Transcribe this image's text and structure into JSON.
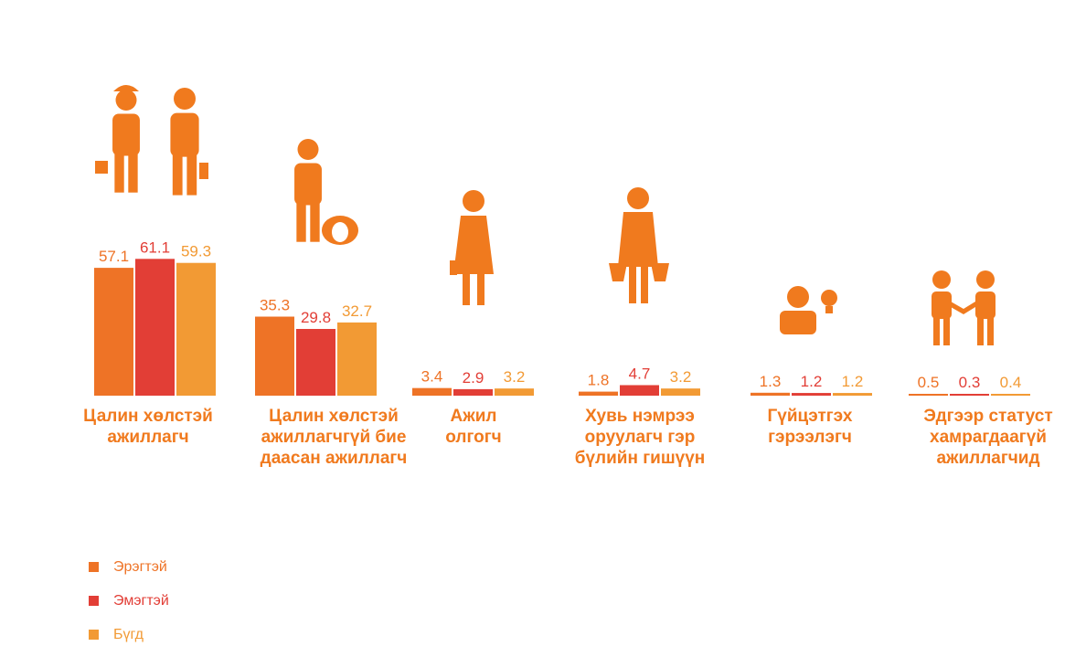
{
  "colors": {
    "men": "#EE7326",
    "women": "#E23E36",
    "total": "#F29A34",
    "label": "#F07A1E",
    "icon": "#F07A1E"
  },
  "chart_data": {
    "type": "bar",
    "categories": [
      [
        "Цалин хөлстэй",
        "ажиллагч"
      ],
      [
        "Цалин хөлстэй",
        "ажиллагчгүй бие",
        "даасан ажиллагч"
      ],
      [
        "Ажил",
        "олгогч"
      ],
      [
        "Хувь нэмрээ",
        "оруулагч гэр",
        "бүлийн гишүүн"
      ],
      [
        "Гүйцэтгэх",
        "гэрээлэгч"
      ],
      [
        "Эдгээр статуст",
        "хамрагдаагүй",
        "ажиллагчид"
      ]
    ],
    "series": [
      {
        "name": "Эрэгтэй",
        "values": [
          57.1,
          35.3,
          3.4,
          1.8,
          1.3,
          0.5
        ]
      },
      {
        "name": "Эмэгтэй",
        "values": [
          61.1,
          29.8,
          2.9,
          4.7,
          1.2,
          0.3
        ]
      },
      {
        "name": "Бүгд",
        "values": [
          59.3,
          32.7,
          3.2,
          3.2,
          1.2,
          0.4
        ]
      }
    ],
    "value_labels": [
      [
        "57.1",
        "61.1",
        "59.3"
      ],
      [
        "35.3",
        "29.8",
        "32.7"
      ],
      [
        "3.4",
        "2.9",
        "3.2"
      ],
      [
        "1.8",
        "4.7",
        "3.2"
      ],
      [
        "1.3",
        "1.2",
        "1.2"
      ],
      [
        "0.5",
        "0.3",
        "0.4"
      ]
    ],
    "icons": [
      "workers-icon",
      "herder-with-sheep-icon",
      "employer-woman-icon",
      "family-worker-with-buckets-icon",
      "contractor-with-lightbulb-icon",
      "handshake-icon"
    ],
    "legend_position": "bottom-left",
    "grid": false
  },
  "legend": [
    {
      "label": "Эрэгтэй",
      "color": "#EE7326"
    },
    {
      "label": "Эмэгтэй",
      "color": "#E23E36"
    },
    {
      "label": "Бүгд",
      "color": "#F29A34"
    }
  ]
}
